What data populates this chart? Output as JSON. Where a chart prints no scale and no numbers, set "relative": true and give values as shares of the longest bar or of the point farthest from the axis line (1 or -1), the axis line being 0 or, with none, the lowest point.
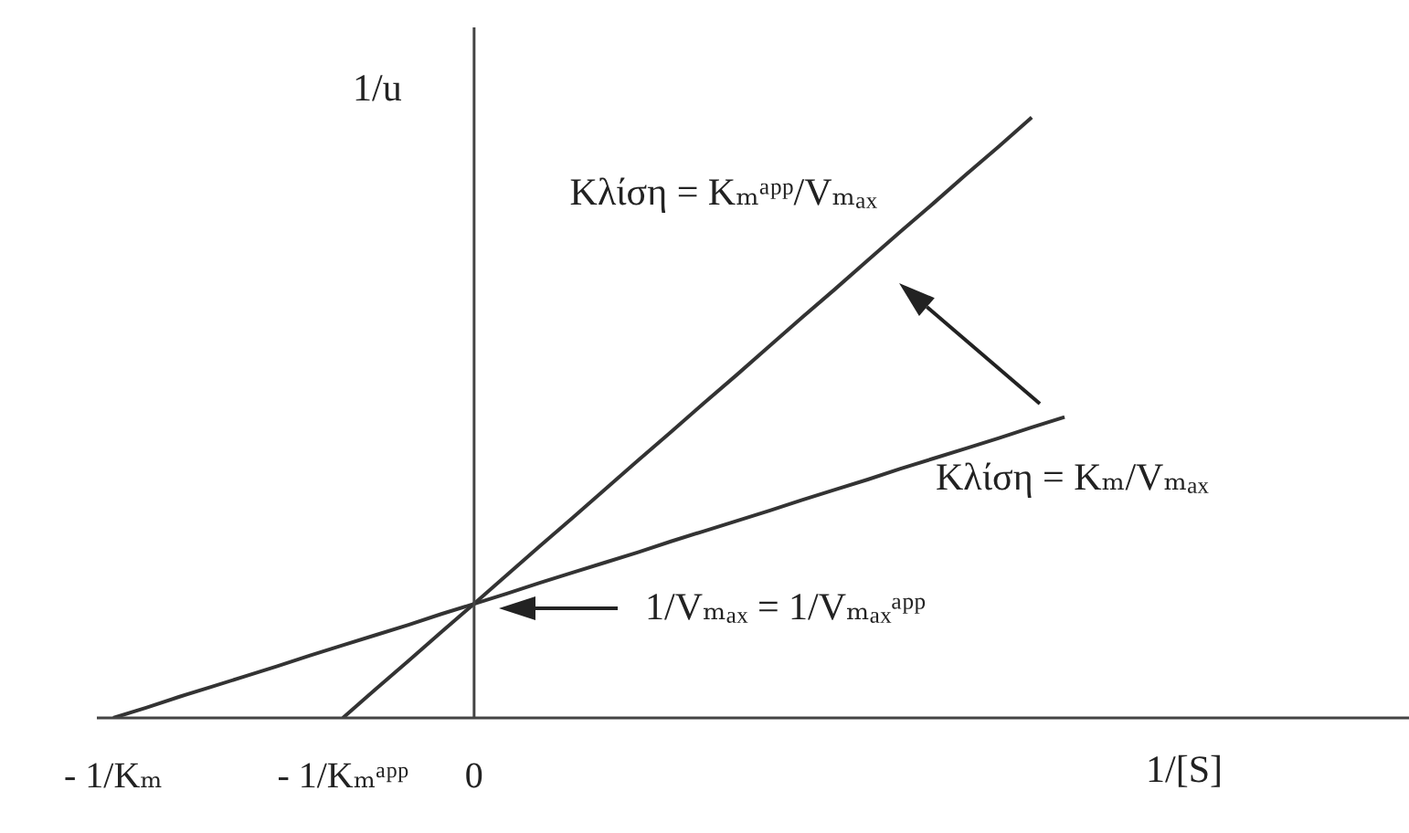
{
  "chart_data": {
    "type": "line",
    "relative": true,
    "xlabel": "1/[S]",
    "ylabel": "1/u",
    "categories": [
      "- 1/Kₘ",
      null,
      null,
      null,
      null,
      null,
      null,
      "- 1/Kₘᵃᵖᵖ",
      null,
      null,
      null,
      "0",
      null,
      null,
      null,
      null,
      null,
      null,
      null,
      null,
      null,
      null,
      null,
      null,
      null,
      null,
      null,
      null,
      null,
      null,
      null,
      null,
      null,
      null,
      null,
      null,
      null,
      null,
      null,
      null
    ],
    "series": [
      {
        "color": "#333333",
        "values": [
          0,
          0.017,
          0.035,
          0.052,
          0.069,
          0.086,
          0.104,
          0.121,
          0.138,
          0.155,
          0.173,
          0.19,
          0.207,
          0.225,
          0.242,
          0.259,
          0.276,
          0.294,
          0.311,
          0.328,
          0.345,
          0.363,
          0.38,
          0.397,
          0.415,
          0.432,
          0.449,
          0.466,
          0.484,
          0.501,
          null,
          null,
          null,
          null,
          null,
          null,
          null,
          null,
          null,
          null
        ]
      },
      {
        "color": "#333333",
        "values": [
          null,
          null,
          null,
          null,
          null,
          null,
          null,
          0,
          0.048,
          0.095,
          0.143,
          0.19,
          0.238,
          0.286,
          0.333,
          0.381,
          0.429,
          0.476,
          0.524,
          0.571,
          0.619,
          0.667,
          0.714,
          0.762,
          0.81,
          0.857,
          0.905,
          0.952,
          1,
          null,
          null,
          null,
          null,
          null,
          null,
          null,
          null,
          null,
          null,
          null
        ]
      }
    ],
    "annotations": [
      "Κλίση = Kₘᵃᵖᵖ/Vₘₐₓ",
      "Κλίση = Kₘ/Vₘₐₓ",
      "1/Vₘₐₓ = 1/Vₘₐₓᵃᵖᵖ"
    ],
    "marker": "none",
    "line_style": "solid"
  }
}
